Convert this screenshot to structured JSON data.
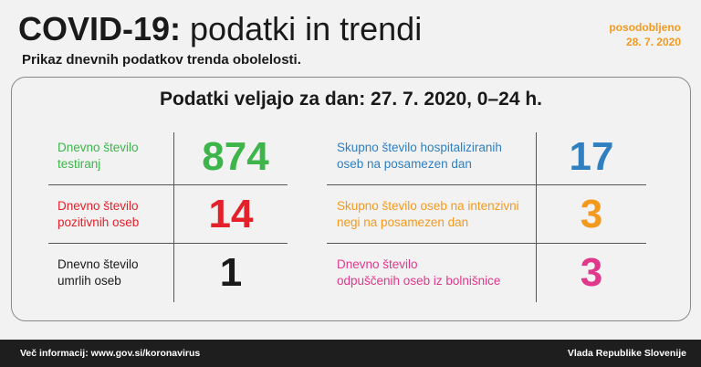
{
  "header": {
    "title_bold": "COVID-19:",
    "title_rest": " podatki in trendi",
    "subtitle": "Prikaz dnevnih podatkov trenda obolelosti.",
    "updated_label": "posodobljeno",
    "updated_date": "28. 7. 2020"
  },
  "card": {
    "heading": "Podatki veljajo za dan: 27. 7. 2020, 0–24 h.",
    "left": [
      {
        "label": "Dnevno število\ntestiranj",
        "value": "874",
        "color": "#3db54a"
      },
      {
        "label": "Dnevno število\npozitivnih oseb",
        "value": "14",
        "color": "#e4202a"
      },
      {
        "label": "Dnevno število\numrlih oseb",
        "value": "1",
        "color": "#1a1a1a"
      }
    ],
    "right": [
      {
        "label": "Skupno število hospitaliziranih\noseb na posamezen dan",
        "value": "17",
        "color": "#2f7fc1"
      },
      {
        "label": "Skupno število oseb na intenzivni\nnegi na posamezen dan",
        "value": "3",
        "color": "#f39a1e"
      },
      {
        "label": "Dnevno število\nodpuščenih oseb iz bolnišnice",
        "value": "3",
        "color": "#e0388b"
      }
    ]
  },
  "footer": {
    "info": "Več informacij: www.gov.si/koronavirus",
    "org": "Vlada Republike Slovenije"
  },
  "colors": {
    "background": "#f2f2f2",
    "footer_bg": "#1e1e1e",
    "accent_orange": "#f39a1e"
  }
}
